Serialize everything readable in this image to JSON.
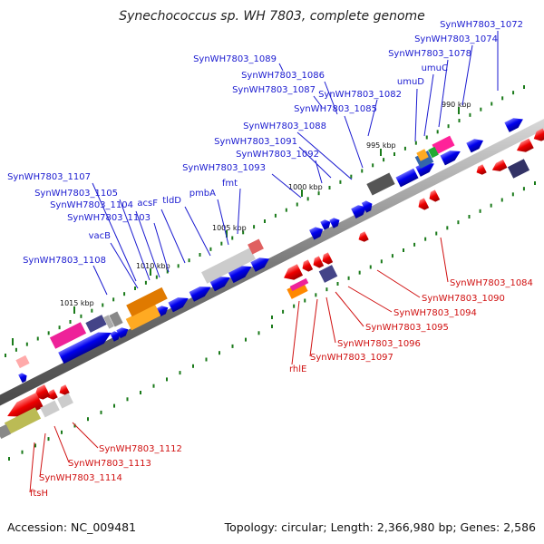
{
  "title": "Synechococcus sp. WH 7803, complete genome",
  "footer": {
    "accession": "Accession: NC_009481",
    "summary": "Topology: circular; Length: 2,366,980 bp; Genes: 2,586"
  },
  "ticks": [
    "990 kbp",
    "995 kbp",
    "1000 kbp",
    "1005 kbp",
    "1010 kbp",
    "1015 kbp"
  ],
  "labels_forward": [
    "SynWH7803_1072",
    "SynWH7803_1074",
    "SynWH7803_1078",
    "umuC",
    "umuD",
    "SynWH7803_1082",
    "SynWH7803_1085",
    "SynWH7803_1086",
    "SynWH7803_1087",
    "SynWH7803_1088",
    "SynWH7803_1089",
    "SynWH7803_1091",
    "SynWH7803_1092",
    "SynWH7803_1093",
    "fmt",
    "pmbA",
    "tldD",
    "acsF",
    "vacB",
    "SynWH7803_1103",
    "SynWH7803_1104",
    "SynWH7803_1105",
    "SynWH7803_1107",
    "SynWH7803_1108"
  ],
  "labels_reverse": [
    "SynWH7803_1084",
    "SynWH7803_1090",
    "SynWH7803_1094",
    "SynWH7803_1095",
    "SynWH7803_1096",
    "SynWH7803_1097",
    "rhlE",
    "SynWH7803_1112",
    "SynWH7803_1113",
    "SynWH7803_1114",
    "ftsH"
  ],
  "colors": {
    "forward_label": "#1a1ad0",
    "reverse_label": "#d01010",
    "forward_gene": "#0000ee",
    "reverse_gene": "#ee0000",
    "backbone": "#8c8c8c",
    "tick": "#1a7a1a"
  }
}
